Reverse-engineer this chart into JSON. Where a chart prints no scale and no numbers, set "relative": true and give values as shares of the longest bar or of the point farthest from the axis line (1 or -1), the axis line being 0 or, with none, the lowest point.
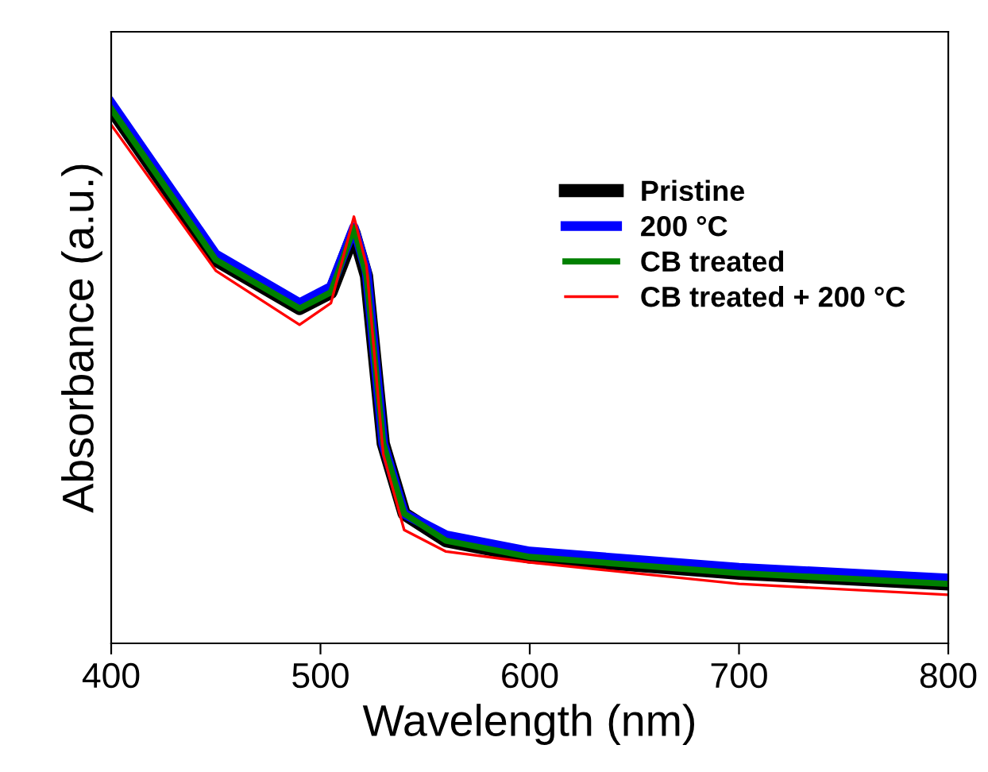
{
  "chart_data": {
    "type": "line",
    "xlabel": "Wavelength (nm)",
    "ylabel": "Absorbance (a.u.)",
    "relative": true,
    "x": [
      400,
      450,
      490,
      505,
      516,
      522,
      530,
      540,
      560,
      600,
      700,
      800
    ],
    "xlim": [
      400,
      800
    ],
    "xticks": [
      400,
      500,
      600,
      700,
      800
    ],
    "tick_labels": "x",
    "grid": false,
    "legend": "top right",
    "marker": "none",
    "line_style": "solid",
    "series": [
      {
        "name": "Pristine",
        "color": "#000000",
        "values": [
          0.99,
          0.71,
          0.62,
          0.65,
          0.76,
          0.68,
          0.37,
          0.24,
          0.19,
          0.16,
          0.13,
          0.11
        ]
      },
      {
        "name": "200 °C",
        "color": "#0000ff",
        "values": [
          1.0,
          0.72,
          0.63,
          0.66,
          0.77,
          0.69,
          0.37,
          0.24,
          0.2,
          0.17,
          0.14,
          0.12
        ]
      },
      {
        "name": "CB treated",
        "color": "#008000",
        "values": [
          0.99,
          0.71,
          0.62,
          0.65,
          0.77,
          0.68,
          0.37,
          0.24,
          0.19,
          0.16,
          0.13,
          0.11
        ]
      },
      {
        "name": "CB treated + 200 °C",
        "color": "#ff0000",
        "values": [
          0.96,
          0.69,
          0.59,
          0.63,
          0.79,
          0.7,
          0.35,
          0.21,
          0.17,
          0.15,
          0.11,
          0.09
        ]
      }
    ]
  }
}
